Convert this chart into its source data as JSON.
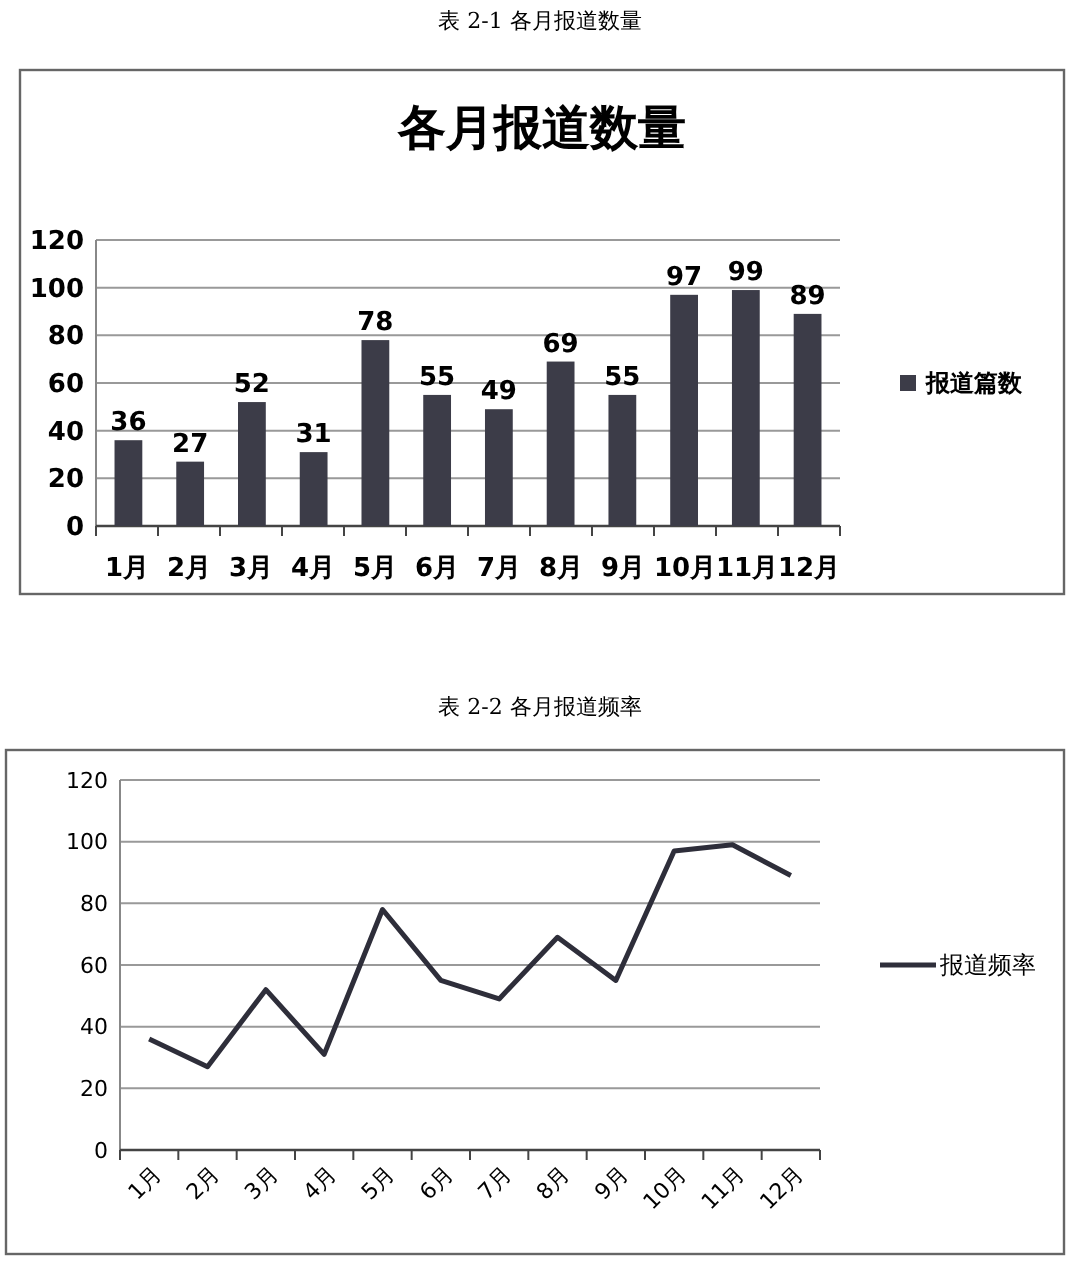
{
  "chart_data": [
    {
      "type": "bar",
      "title": "各月报道数量",
      "annotations": [
        "表 2-1 各月报道数量"
      ],
      "categories": [
        "1月",
        "2月",
        "3月",
        "4月",
        "5月",
        "6月",
        "7月",
        "8月",
        "9月",
        "10月",
        "11月",
        "12月"
      ],
      "series": [
        {
          "name": "报道篇数",
          "color": "#3c3c48",
          "values": [
            36,
            27,
            52,
            31,
            78,
            55,
            49,
            69,
            55,
            97,
            99,
            89
          ]
        }
      ],
      "ylim": [
        0,
        120
      ],
      "yticks": [
        0,
        20,
        40,
        60,
        80,
        100,
        120
      ],
      "grid": "y",
      "legend": "right",
      "data_labels": true
    },
    {
      "type": "line",
      "annotations": [
        "表 2-2 各月报道频率"
      ],
      "categories": [
        "1月",
        "2月",
        "3月",
        "4月",
        "5月",
        "6月",
        "7月",
        "8月",
        "9月",
        "10月",
        "11月",
        "12月"
      ],
      "series": [
        {
          "name": "报道频率",
          "color": "#2e2e3a",
          "values": [
            36,
            27,
            52,
            31,
            78,
            55,
            49,
            69,
            55,
            97,
            99,
            89
          ]
        }
      ],
      "ylim": [
        0,
        120
      ],
      "yticks": [
        0,
        20,
        40,
        60,
        80,
        100,
        120
      ],
      "grid": "y",
      "legend": "right",
      "marker": "none",
      "line_style": "solid"
    }
  ]
}
